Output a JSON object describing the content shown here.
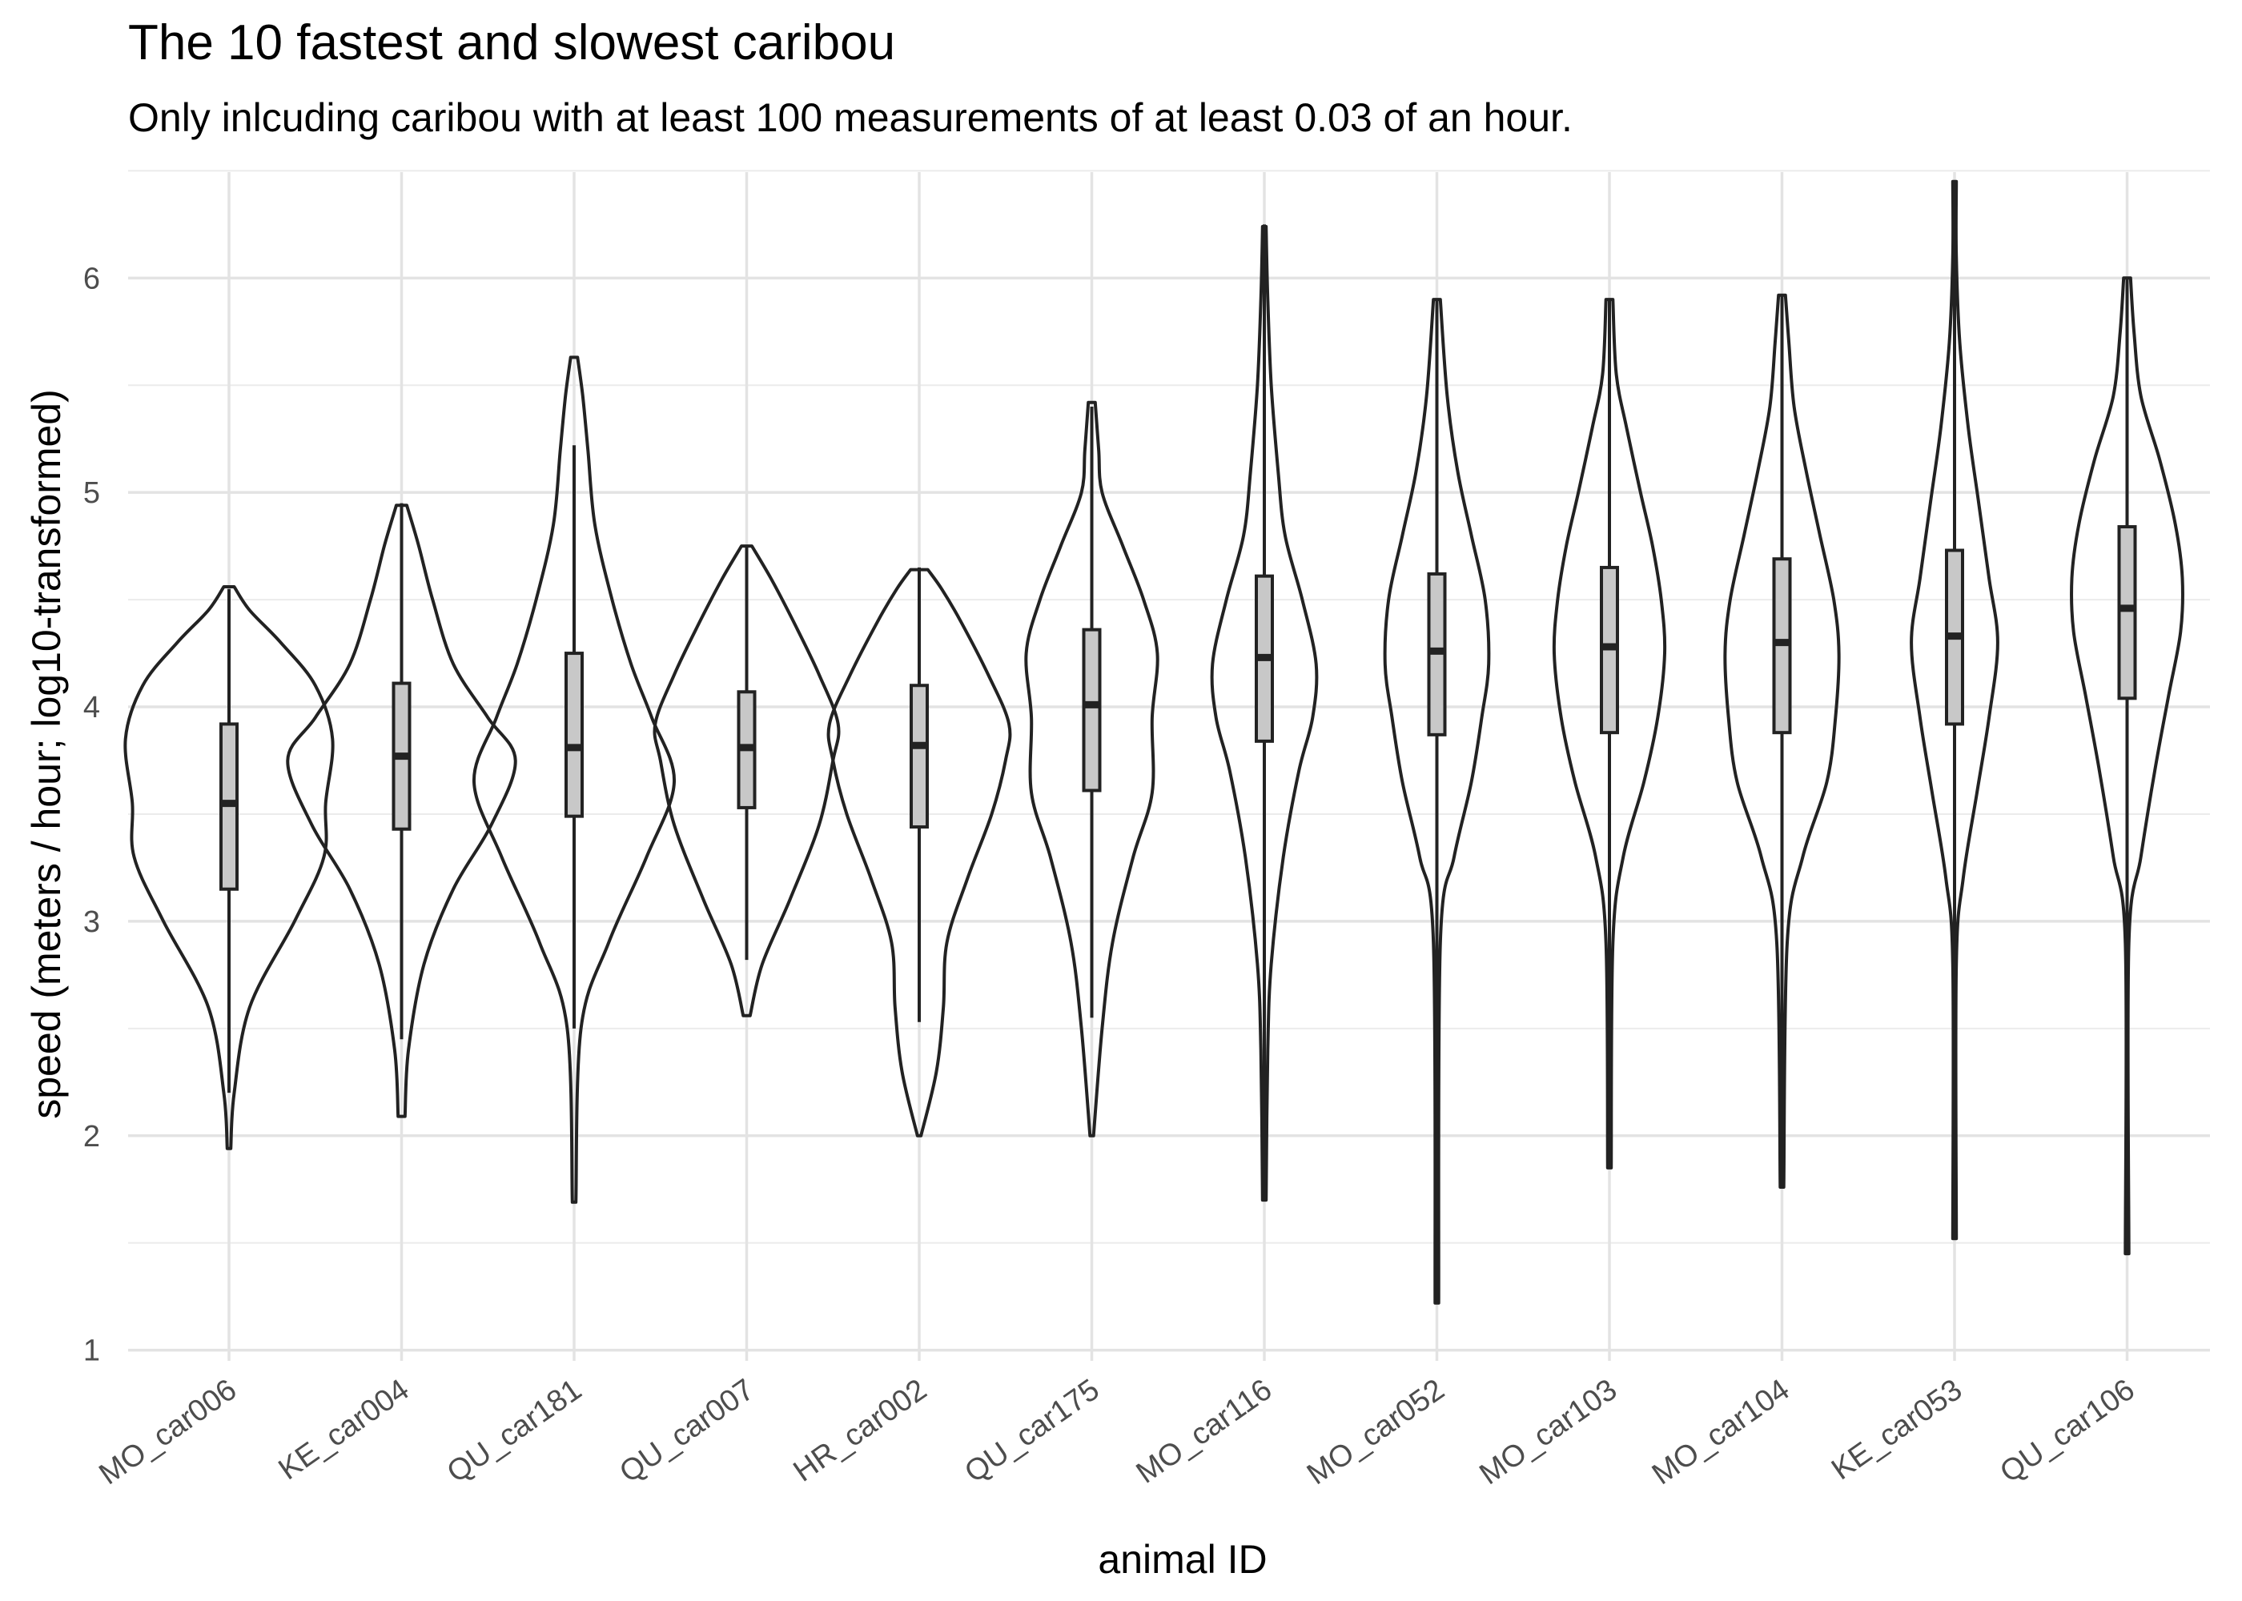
{
  "chart_data": {
    "type": "violin",
    "title": "The 10 fastest and slowest caribou",
    "subtitle": "Only inlcuding caribou with at least 100 measurements of at least 0.03 of an hour.",
    "xlabel": "animal ID",
    "ylabel": "speed (meters / hour; log10-transformed)",
    "ylim": [
      0.95,
      6.55
    ],
    "yticks": [
      1,
      2,
      3,
      4,
      5,
      6
    ],
    "grid": true,
    "categories": [
      "MO_car006",
      "KE_car004",
      "QU_car181",
      "QU_car007",
      "HR_car002",
      "QU_car175",
      "MO_car116",
      "MO_car052",
      "MO_car103",
      "MO_car104",
      "KE_car053",
      "QU_car106"
    ],
    "series": [
      {
        "box": [
          {
            "whisker_low": 2.2,
            "q1": 3.15,
            "median": 3.55,
            "q3": 3.92,
            "whisker_high": 4.55
          },
          {
            "whisker_low": 2.45,
            "q1": 3.43,
            "median": 3.77,
            "q3": 4.11,
            "whisker_high": 4.95
          },
          {
            "whisker_low": 2.5,
            "q1": 3.49,
            "median": 3.81,
            "q3": 4.25,
            "whisker_high": 5.22
          },
          {
            "whisker_low": 2.82,
            "q1": 3.53,
            "median": 3.81,
            "q3": 4.07,
            "whisker_high": 4.75
          },
          {
            "whisker_low": 2.53,
            "q1": 3.44,
            "median": 3.82,
            "q3": 4.1,
            "whisker_high": 4.65
          },
          {
            "whisker_low": 2.55,
            "q1": 3.61,
            "median": 4.01,
            "q3": 4.36,
            "whisker_high": 5.4
          },
          {
            "whisker_low": 1.7,
            "q1": 3.84,
            "median": 4.23,
            "q3": 4.61,
            "whisker_high": 6.25
          },
          {
            "whisker_low": 1.22,
            "q1": 3.87,
            "median": 4.26,
            "q3": 4.62,
            "whisker_high": 5.9
          },
          {
            "whisker_low": 1.85,
            "q1": 3.88,
            "median": 4.28,
            "q3": 4.65,
            "whisker_high": 5.9
          },
          {
            "whisker_low": 1.76,
            "q1": 3.88,
            "median": 4.3,
            "q3": 4.69,
            "whisker_high": 5.92
          },
          {
            "whisker_low": 1.52,
            "q1": 3.92,
            "median": 4.33,
            "q3": 4.73,
            "whisker_high": 6.45
          },
          {
            "whisker_low": 1.45,
            "q1": 4.04,
            "median": 4.46,
            "q3": 4.84,
            "whisker_high": 6.0
          }
        ],
        "violin_half_width_profiles": [
          [
            [
              1.94,
              0.01
            ],
            [
              2.2,
              0.03
            ],
            [
              2.6,
              0.12
            ],
            [
              3.0,
              0.38
            ],
            [
              3.3,
              0.55
            ],
            [
              3.55,
              0.56
            ],
            [
              3.85,
              0.6
            ],
            [
              4.1,
              0.5
            ],
            [
              4.3,
              0.3
            ],
            [
              4.45,
              0.12
            ],
            [
              4.56,
              0.03
            ]
          ],
          [
            [
              2.09,
              0.02
            ],
            [
              2.4,
              0.04
            ],
            [
              2.8,
              0.13
            ],
            [
              3.15,
              0.3
            ],
            [
              3.45,
              0.52
            ],
            [
              3.75,
              0.66
            ],
            [
              3.95,
              0.5
            ],
            [
              4.2,
              0.3
            ],
            [
              4.5,
              0.18
            ],
            [
              4.75,
              0.1
            ],
            [
              4.94,
              0.03
            ]
          ],
          [
            [
              1.69,
              0.01
            ],
            [
              2.5,
              0.04
            ],
            [
              2.9,
              0.2
            ],
            [
              3.3,
              0.42
            ],
            [
              3.65,
              0.58
            ],
            [
              3.95,
              0.45
            ],
            [
              4.2,
              0.33
            ],
            [
              4.5,
              0.22
            ],
            [
              4.85,
              0.12
            ],
            [
              5.2,
              0.08
            ],
            [
              5.45,
              0.05
            ],
            [
              5.63,
              0.02
            ]
          ],
          [
            [
              2.56,
              0.02
            ],
            [
              2.8,
              0.09
            ],
            [
              3.1,
              0.25
            ],
            [
              3.45,
              0.42
            ],
            [
              3.75,
              0.5
            ],
            [
              3.92,
              0.53
            ],
            [
              4.15,
              0.42
            ],
            [
              4.4,
              0.27
            ],
            [
              4.6,
              0.14
            ],
            [
              4.75,
              0.03
            ]
          ],
          [
            [
              2.0,
              0.01
            ],
            [
              2.3,
              0.1
            ],
            [
              2.6,
              0.14
            ],
            [
              2.9,
              0.16
            ],
            [
              3.2,
              0.28
            ],
            [
              3.5,
              0.42
            ],
            [
              3.75,
              0.5
            ],
            [
              3.92,
              0.52
            ],
            [
              4.15,
              0.4
            ],
            [
              4.4,
              0.24
            ],
            [
              4.55,
              0.13
            ],
            [
              4.64,
              0.05
            ]
          ],
          [
            [
              2.0,
              0.01
            ],
            [
              2.5,
              0.06
            ],
            [
              2.9,
              0.12
            ],
            [
              3.3,
              0.24
            ],
            [
              3.6,
              0.35
            ],
            [
              3.95,
              0.35
            ],
            [
              4.25,
              0.38
            ],
            [
              4.5,
              0.3
            ],
            [
              4.75,
              0.18
            ],
            [
              5.0,
              0.06
            ],
            [
              5.2,
              0.04
            ],
            [
              5.42,
              0.02
            ]
          ],
          [
            [
              1.7,
              0.01
            ],
            [
              2.4,
              0.02
            ],
            [
              2.8,
              0.04
            ],
            [
              3.3,
              0.11
            ],
            [
              3.7,
              0.2
            ],
            [
              3.95,
              0.28
            ],
            [
              4.2,
              0.3
            ],
            [
              4.5,
              0.22
            ],
            [
              4.8,
              0.12
            ],
            [
              5.1,
              0.08
            ],
            [
              5.5,
              0.04
            ],
            [
              5.9,
              0.02
            ],
            [
              6.24,
              0.01
            ]
          ],
          [
            [
              1.22,
              0.01
            ],
            [
              2.9,
              0.02
            ],
            [
              3.3,
              0.1
            ],
            [
              3.65,
              0.2
            ],
            [
              3.95,
              0.26
            ],
            [
              4.2,
              0.3
            ],
            [
              4.5,
              0.28
            ],
            [
              4.8,
              0.2
            ],
            [
              5.1,
              0.12
            ],
            [
              5.45,
              0.06
            ],
            [
              5.9,
              0.02
            ]
          ],
          [
            [
              1.85,
              0.01
            ],
            [
              2.9,
              0.02
            ],
            [
              3.3,
              0.08
            ],
            [
              3.65,
              0.2
            ],
            [
              3.95,
              0.28
            ],
            [
              4.25,
              0.32
            ],
            [
              4.5,
              0.3
            ],
            [
              4.75,
              0.25
            ],
            [
              5.0,
              0.18
            ],
            [
              5.3,
              0.1
            ],
            [
              5.55,
              0.04
            ],
            [
              5.9,
              0.02
            ]
          ],
          [
            [
              1.76,
              0.01
            ],
            [
              2.9,
              0.03
            ],
            [
              3.3,
              0.12
            ],
            [
              3.65,
              0.26
            ],
            [
              3.95,
              0.31
            ],
            [
              4.25,
              0.33
            ],
            [
              4.5,
              0.3
            ],
            [
              4.8,
              0.22
            ],
            [
              5.1,
              0.14
            ],
            [
              5.4,
              0.07
            ],
            [
              5.7,
              0.04
            ],
            [
              5.92,
              0.02
            ]
          ],
          [
            [
              1.52,
              0.01
            ],
            [
              2.8,
              0.01
            ],
            [
              3.2,
              0.05
            ],
            [
              3.6,
              0.13
            ],
            [
              3.95,
              0.2
            ],
            [
              4.3,
              0.25
            ],
            [
              4.6,
              0.2
            ],
            [
              4.95,
              0.14
            ],
            [
              5.3,
              0.08
            ],
            [
              5.7,
              0.03
            ],
            [
              6.1,
              0.01
            ],
            [
              6.45,
              0.01
            ]
          ],
          [
            [
              1.45,
              0.01
            ],
            [
              2.9,
              0.01
            ],
            [
              3.3,
              0.08
            ],
            [
              3.7,
              0.16
            ],
            [
              4.05,
              0.24
            ],
            [
              4.35,
              0.31
            ],
            [
              4.6,
              0.32
            ],
            [
              4.85,
              0.28
            ],
            [
              5.15,
              0.19
            ],
            [
              5.45,
              0.08
            ],
            [
              5.75,
              0.04
            ],
            [
              6.0,
              0.02
            ]
          ]
        ]
      }
    ]
  }
}
